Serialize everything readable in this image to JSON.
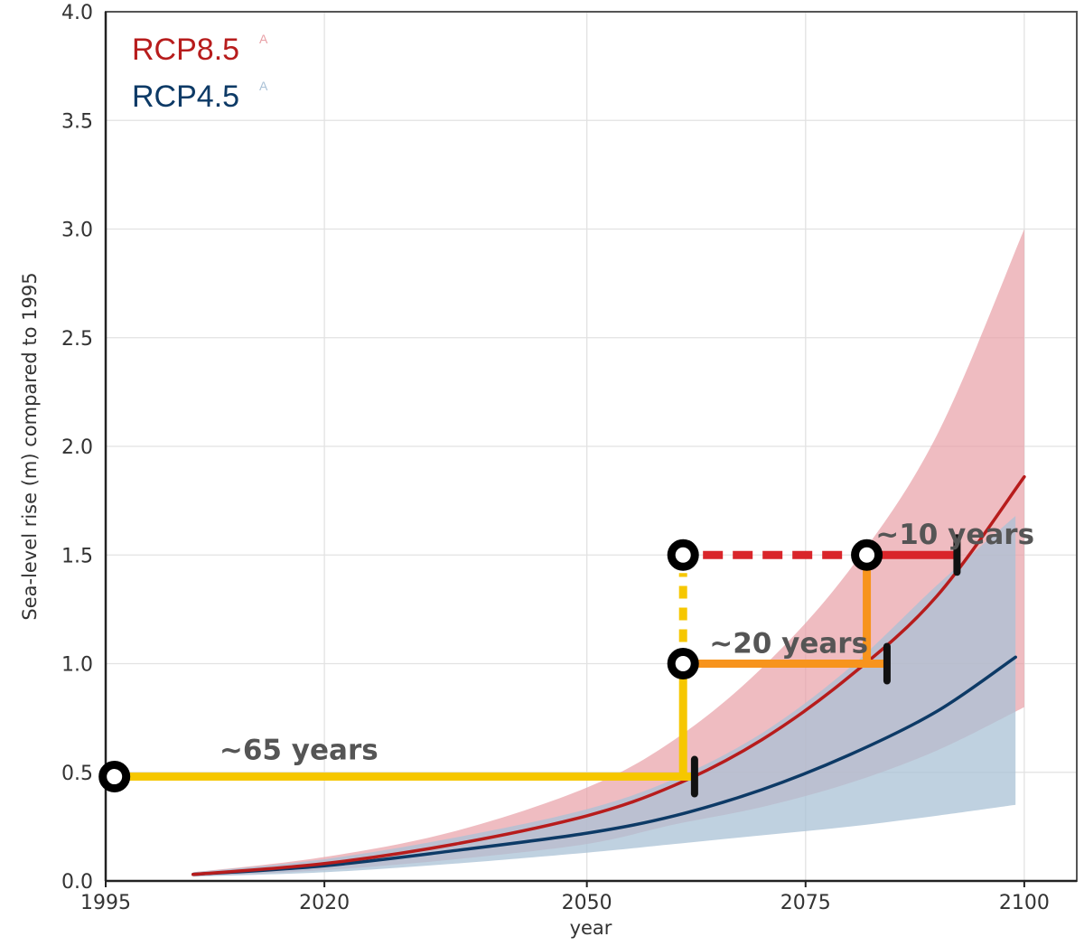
{
  "chart_data": {
    "type": "line",
    "xlabel": "year",
    "ylabel": "Sea-level rise (m) compared to 1995",
    "xlim": [
      1995,
      2106
    ],
    "ylim": [
      0,
      4
    ],
    "x_ticks": [
      "1995",
      "2020",
      "2050",
      "2075",
      "2100"
    ],
    "y_ticks": [
      "0.0",
      "0.5",
      "1.0",
      "1.5",
      "2.0",
      "2.5",
      "3.0",
      "3.5",
      "4.0"
    ],
    "grid": true,
    "legend_position": "top-left",
    "series": [
      {
        "name": "RCP8.5",
        "superscript": "A",
        "color": "#b71c1c",
        "band_color": "#e8a0a6",
        "x": [
          2005,
          2020,
          2035,
          2050,
          2060,
          2070,
          2080,
          2090,
          2100
        ],
        "y": [
          0.03,
          0.08,
          0.17,
          0.3,
          0.44,
          0.65,
          0.94,
          1.31,
          1.86
        ],
        "lower": [
          0.02,
          0.05,
          0.1,
          0.17,
          0.26,
          0.34,
          0.45,
          0.6,
          0.8
        ],
        "upper": [
          0.04,
          0.11,
          0.23,
          0.43,
          0.65,
          0.98,
          1.43,
          2.05,
          3.0
        ]
      },
      {
        "name": "RCP4.5",
        "superscript": "A",
        "color": "#0d3a66",
        "band_color": "#a9c1d6",
        "x": [
          2005,
          2020,
          2035,
          2050,
          2060,
          2070,
          2080,
          2090,
          2099
        ],
        "y": [
          0.03,
          0.07,
          0.14,
          0.22,
          0.3,
          0.42,
          0.58,
          0.78,
          1.03
        ],
        "lower": [
          0.02,
          0.04,
          0.08,
          0.13,
          0.17,
          0.21,
          0.25,
          0.3,
          0.35
        ],
        "upper": [
          0.04,
          0.1,
          0.2,
          0.33,
          0.47,
          0.68,
          0.98,
          1.36,
          1.68
        ]
      }
    ],
    "annotations": [
      {
        "text": "~65 years",
        "x": 2008,
        "y": 0.56
      },
      {
        "text": "~20 years",
        "x": 2064,
        "y": 1.05
      },
      {
        "text": "~10 years",
        "x": 2083,
        "y": 1.55
      }
    ],
    "timeline": {
      "points": [
        {
          "x": 1996,
          "y": 0.48
        },
        {
          "x": 2061,
          "y": 1.0
        },
        {
          "x": 2061,
          "y": 1.5
        },
        {
          "x": 2082,
          "y": 1.5
        }
      ],
      "ticks": [
        {
          "x": 2062,
          "y": 0.48
        },
        {
          "x": 2084,
          "y": 1.0
        },
        {
          "x": 2092,
          "y": 1.5
        }
      ],
      "colors": {
        "yellow": "#f6c700",
        "orange": "#f7941d",
        "red": "#d9252a"
      }
    }
  }
}
